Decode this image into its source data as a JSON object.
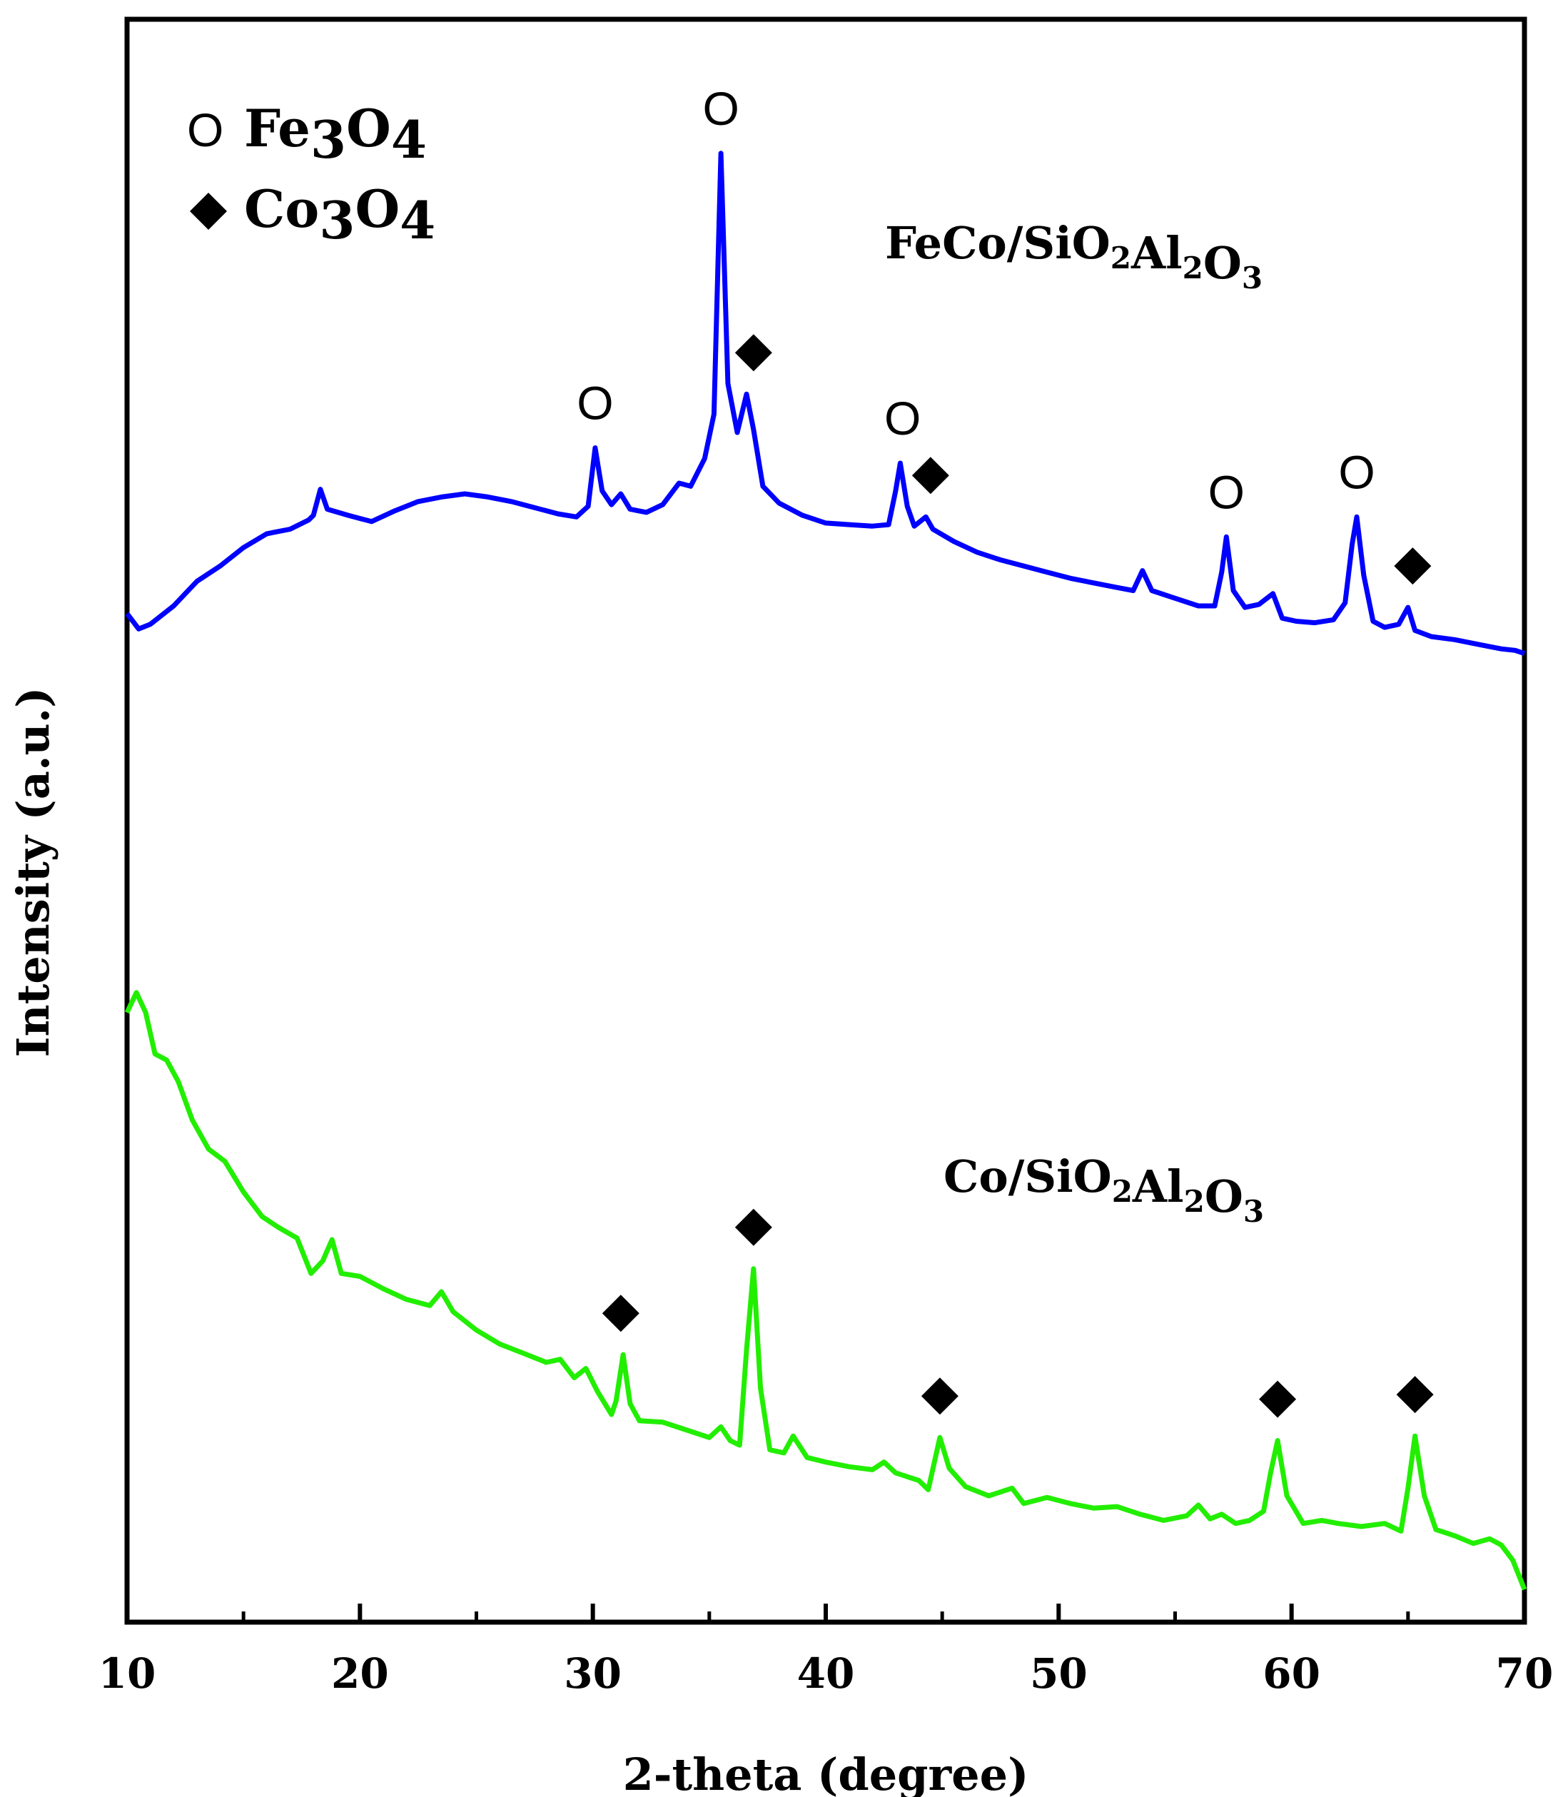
{
  "chart_data": {
    "type": "line",
    "title": "",
    "xlabel": "2-theta (degree)",
    "ylabel": "Intensity (a.u.)",
    "xlim": [
      10,
      70
    ],
    "ylim": [
      0,
      100
    ],
    "x_ticks": [
      "10",
      "20",
      "30",
      "40",
      "50",
      "60",
      "70"
    ],
    "y_ticks": [],
    "grid": false,
    "legend": [
      {
        "marker": "O",
        "label_main": "Fe",
        "sub1": "3",
        "label_mid": "O",
        "sub2": "4",
        "phase": "Fe3O4"
      },
      {
        "marker": "◆",
        "label_main": "Co",
        "sub1": "3",
        "label_mid": "O",
        "sub2": "4",
        "phase": "Co3O4"
      }
    ],
    "series": [
      {
        "name": "FeCo/SiO2Al2O3",
        "color": "#0000ff",
        "label_parts": [
          [
            "FeCo/SiO",
            ""
          ],
          [
            "2",
            "sub"
          ],
          [
            "Al",
            ""
          ],
          [
            "2",
            "sub"
          ],
          [
            "O",
            ""
          ],
          [
            "3",
            "sub"
          ]
        ],
        "points": [
          [
            10.0,
            65.5
          ],
          [
            10.5,
            64.5
          ],
          [
            11.0,
            64.8
          ],
          [
            12.0,
            66.0
          ],
          [
            13.0,
            67.6
          ],
          [
            14.0,
            68.6
          ],
          [
            15.0,
            69.8
          ],
          [
            16.0,
            70.7
          ],
          [
            17.0,
            71.0
          ],
          [
            17.8,
            71.6
          ],
          [
            18.0,
            71.9
          ],
          [
            18.3,
            73.6
          ],
          [
            18.6,
            72.3
          ],
          [
            19.5,
            71.9
          ],
          [
            20.5,
            71.5
          ],
          [
            21.5,
            72.2
          ],
          [
            22.5,
            72.8
          ],
          [
            23.5,
            73.1
          ],
          [
            24.5,
            73.3
          ],
          [
            25.5,
            73.1
          ],
          [
            26.5,
            72.8
          ],
          [
            27.5,
            72.4
          ],
          [
            28.5,
            72.0
          ],
          [
            29.3,
            71.8
          ],
          [
            29.8,
            72.5
          ],
          [
            30.1,
            76.3
          ],
          [
            30.4,
            73.5
          ],
          [
            30.8,
            72.6
          ],
          [
            31.2,
            73.3
          ],
          [
            31.6,
            72.3
          ],
          [
            32.3,
            72.1
          ],
          [
            33.0,
            72.6
          ],
          [
            33.7,
            74.0
          ],
          [
            34.2,
            73.8
          ],
          [
            34.8,
            75.6
          ],
          [
            35.2,
            78.5
          ],
          [
            35.5,
            95.5
          ],
          [
            35.8,
            80.5
          ],
          [
            36.2,
            77.3
          ],
          [
            36.6,
            79.8
          ],
          [
            36.9,
            77.5
          ],
          [
            37.3,
            73.8
          ],
          [
            38.0,
            72.7
          ],
          [
            39.0,
            71.9
          ],
          [
            40.0,
            71.4
          ],
          [
            41.0,
            71.3
          ],
          [
            42.0,
            71.2
          ],
          [
            42.7,
            71.3
          ],
          [
            43.0,
            73.5
          ],
          [
            43.2,
            75.3
          ],
          [
            43.5,
            72.5
          ],
          [
            43.8,
            71.2
          ],
          [
            44.3,
            71.8
          ],
          [
            44.6,
            71.0
          ],
          [
            45.5,
            70.2
          ],
          [
            46.5,
            69.5
          ],
          [
            47.5,
            69.0
          ],
          [
            48.5,
            68.6
          ],
          [
            49.5,
            68.2
          ],
          [
            50.5,
            67.8
          ],
          [
            51.5,
            67.5
          ],
          [
            52.5,
            67.2
          ],
          [
            53.2,
            67.0
          ],
          [
            53.6,
            68.3
          ],
          [
            54.0,
            67.0
          ],
          [
            55.0,
            66.5
          ],
          [
            56.0,
            66.0
          ],
          [
            56.7,
            66.0
          ],
          [
            57.0,
            68.2
          ],
          [
            57.2,
            70.5
          ],
          [
            57.5,
            67.0
          ],
          [
            58.0,
            65.9
          ],
          [
            58.6,
            66.1
          ],
          [
            59.2,
            66.8
          ],
          [
            59.6,
            65.2
          ],
          [
            60.2,
            65.0
          ],
          [
            61.0,
            64.9
          ],
          [
            61.8,
            65.1
          ],
          [
            62.3,
            66.2
          ],
          [
            62.6,
            70.0
          ],
          [
            62.8,
            71.8
          ],
          [
            63.1,
            68.0
          ],
          [
            63.5,
            65.0
          ],
          [
            64.0,
            64.6
          ],
          [
            64.6,
            64.8
          ],
          [
            65.0,
            65.9
          ],
          [
            65.3,
            64.4
          ],
          [
            66.0,
            64.0
          ],
          [
            67.0,
            63.8
          ],
          [
            68.0,
            63.5
          ],
          [
            69.0,
            63.2
          ],
          [
            69.6,
            63.1
          ],
          [
            70.0,
            62.9
          ]
        ]
      },
      {
        "name": "Co/SiO2Al2O3",
        "color": "#22ee00",
        "label_parts": [
          [
            "Co/SiO",
            ""
          ],
          [
            "2",
            "sub"
          ],
          [
            "Al",
            ""
          ],
          [
            "2",
            "sub"
          ],
          [
            "O",
            ""
          ],
          [
            "3",
            "sub"
          ]
        ],
        "points": [
          [
            10.0,
            39.5
          ],
          [
            10.4,
            40.8
          ],
          [
            10.8,
            39.5
          ],
          [
            11.2,
            36.8
          ],
          [
            11.7,
            36.4
          ],
          [
            12.2,
            35.0
          ],
          [
            12.8,
            32.5
          ],
          [
            13.5,
            30.6
          ],
          [
            14.2,
            29.8
          ],
          [
            15.0,
            27.8
          ],
          [
            15.8,
            26.2
          ],
          [
            16.5,
            25.5
          ],
          [
            17.3,
            24.8
          ],
          [
            17.9,
            22.5
          ],
          [
            18.4,
            23.3
          ],
          [
            18.8,
            24.7
          ],
          [
            19.2,
            22.5
          ],
          [
            20.0,
            22.3
          ],
          [
            21.0,
            21.5
          ],
          [
            22.0,
            20.8
          ],
          [
            23.0,
            20.4
          ],
          [
            23.5,
            21.3
          ],
          [
            24.0,
            20.0
          ],
          [
            25.0,
            18.8
          ],
          [
            26.0,
            17.9
          ],
          [
            27.0,
            17.3
          ],
          [
            28.0,
            16.7
          ],
          [
            28.6,
            16.9
          ],
          [
            29.2,
            15.7
          ],
          [
            29.7,
            16.3
          ],
          [
            30.2,
            14.8
          ],
          [
            30.8,
            13.3
          ],
          [
            31.0,
            14.2
          ],
          [
            31.3,
            17.2
          ],
          [
            31.6,
            14.0
          ],
          [
            32.0,
            12.9
          ],
          [
            33.0,
            12.8
          ],
          [
            34.0,
            12.3
          ],
          [
            35.0,
            11.8
          ],
          [
            35.5,
            12.5
          ],
          [
            35.9,
            11.6
          ],
          [
            36.3,
            11.3
          ],
          [
            36.6,
            17.5
          ],
          [
            36.9,
            22.8
          ],
          [
            37.2,
            15.0
          ],
          [
            37.6,
            11.0
          ],
          [
            38.2,
            10.8
          ],
          [
            38.6,
            11.9
          ],
          [
            39.2,
            10.5
          ],
          [
            40.0,
            10.2
          ],
          [
            41.0,
            9.9
          ],
          [
            42.0,
            9.7
          ],
          [
            42.5,
            10.2
          ],
          [
            43.0,
            9.5
          ],
          [
            44.0,
            9.0
          ],
          [
            44.4,
            8.4
          ],
          [
            44.9,
            11.8
          ],
          [
            45.3,
            9.8
          ],
          [
            46.0,
            8.6
          ],
          [
            47.0,
            8.0
          ],
          [
            48.0,
            8.5
          ],
          [
            48.5,
            7.5
          ],
          [
            49.5,
            7.9
          ],
          [
            50.5,
            7.5
          ],
          [
            51.5,
            7.2
          ],
          [
            52.5,
            7.3
          ],
          [
            53.5,
            6.8
          ],
          [
            54.5,
            6.4
          ],
          [
            55.5,
            6.7
          ],
          [
            56.0,
            7.4
          ],
          [
            56.5,
            6.5
          ],
          [
            57.0,
            6.8
          ],
          [
            57.6,
            6.2
          ],
          [
            58.2,
            6.4
          ],
          [
            58.8,
            7.0
          ],
          [
            59.1,
            9.5
          ],
          [
            59.4,
            11.6
          ],
          [
            59.8,
            8.0
          ],
          [
            60.5,
            6.2
          ],
          [
            61.3,
            6.4
          ],
          [
            62.0,
            6.2
          ],
          [
            63.0,
            6.0
          ],
          [
            64.0,
            6.2
          ],
          [
            64.7,
            5.7
          ],
          [
            65.0,
            8.5
          ],
          [
            65.3,
            11.9
          ],
          [
            65.7,
            8.0
          ],
          [
            66.2,
            5.8
          ],
          [
            67.0,
            5.4
          ],
          [
            67.8,
            4.9
          ],
          [
            68.5,
            5.2
          ],
          [
            69.0,
            4.8
          ],
          [
            69.5,
            3.8
          ],
          [
            70.0,
            1.9
          ]
        ]
      }
    ],
    "peak_markers": [
      {
        "series": 0,
        "symbol": "O",
        "x": 30.1
      },
      {
        "series": 0,
        "symbol": "O",
        "x": 35.5
      },
      {
        "series": 0,
        "symbol": "◆",
        "x": 36.9
      },
      {
        "series": 0,
        "symbol": "O",
        "x": 43.3
      },
      {
        "series": 0,
        "symbol": "◆",
        "x": 44.5
      },
      {
        "series": 0,
        "symbol": "O",
        "x": 57.2
      },
      {
        "series": 0,
        "symbol": "O",
        "x": 62.8
      },
      {
        "series": 0,
        "symbol": "◆",
        "x": 65.2
      },
      {
        "series": 1,
        "symbol": "◆",
        "x": 31.2
      },
      {
        "series": 1,
        "symbol": "◆",
        "x": 36.9
      },
      {
        "series": 1,
        "symbol": "◆",
        "x": 44.9
      },
      {
        "series": 1,
        "symbol": "◆",
        "x": 59.4
      },
      {
        "series": 1,
        "symbol": "◆",
        "x": 65.3
      }
    ]
  }
}
